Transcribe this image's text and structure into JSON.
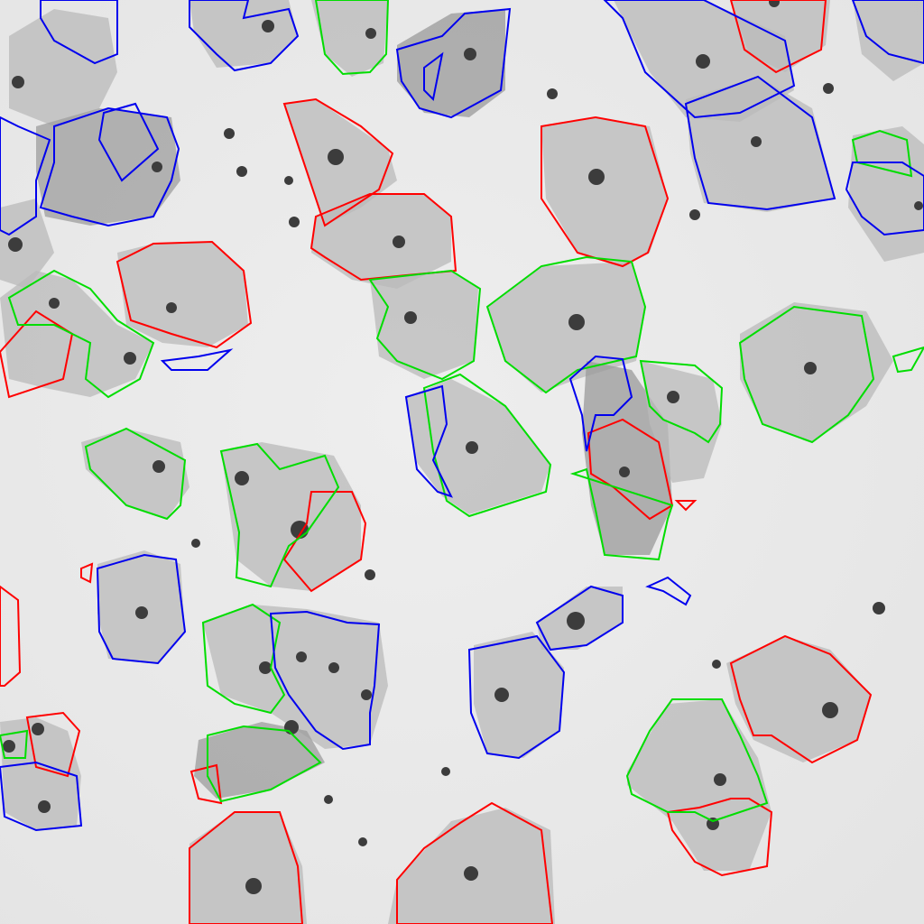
{
  "image": {
    "kind": "cytology-micrograph",
    "background": "#ececec",
    "cell_fill": "#b8b8b8",
    "nucleus_fill": "#3a3a3a",
    "outline_colors": {
      "red": "#ff0000",
      "green": "#00e000",
      "blue": "#0000ee"
    }
  }
}
